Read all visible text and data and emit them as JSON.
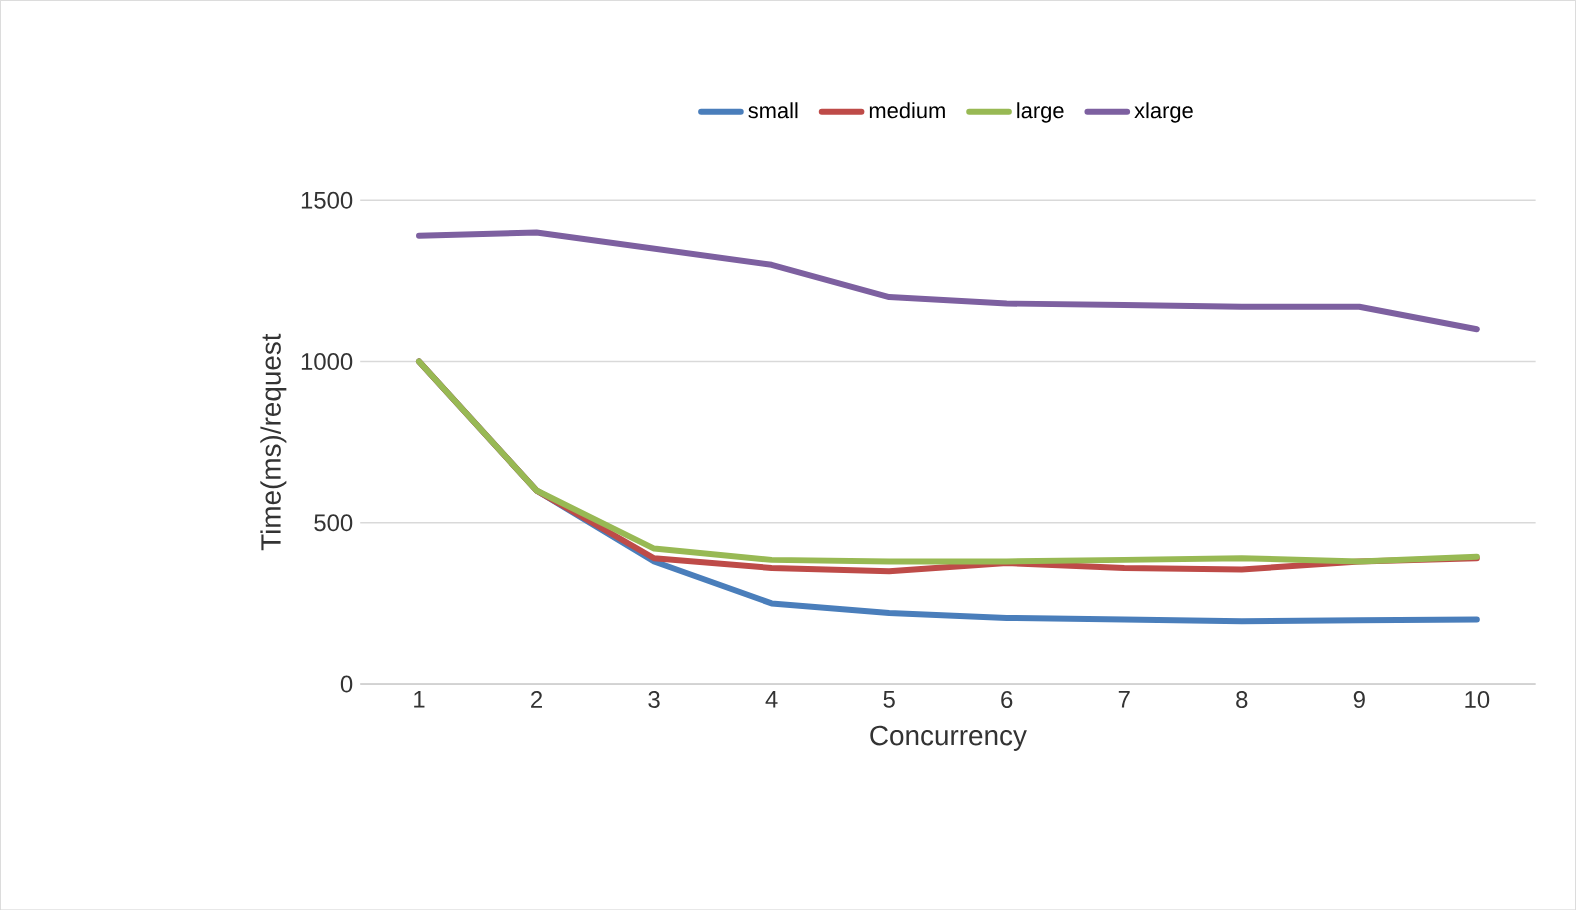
{
  "chart_data": {
    "type": "line",
    "xlabel": "Concurrency",
    "ylabel": "Time(ms)/request",
    "categories": [
      "1",
      "2",
      "3",
      "4",
      "5",
      "6",
      "7",
      "8",
      "9",
      "10"
    ],
    "series": [
      {
        "name": "small",
        "color": "#4a7ebb",
        "values": [
          1000,
          600,
          380,
          250,
          220,
          205,
          200,
          195,
          198,
          200
        ]
      },
      {
        "name": "medium",
        "color": "#be4b48",
        "values": [
          1000,
          600,
          390,
          360,
          350,
          375,
          360,
          355,
          380,
          390
        ]
      },
      {
        "name": "large",
        "color": "#98b954",
        "values": [
          1000,
          600,
          420,
          385,
          380,
          380,
          385,
          390,
          380,
          395
        ]
      },
      {
        "name": "xlarge",
        "color": "#7d60a0",
        "values": [
          1390,
          1400,
          1350,
          1300,
          1200,
          1180,
          1175,
          1170,
          1170,
          1100
        ]
      }
    ],
    "ylim": [
      0,
      1500
    ],
    "yticks": [
      0,
      500,
      1000,
      1500
    ],
    "grid": "y",
    "legend": "top",
    "marker": "none",
    "line_style": "solid"
  }
}
